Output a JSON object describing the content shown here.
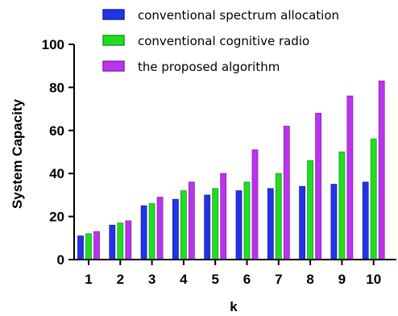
{
  "chart_data": {
    "type": "bar",
    "categories": [
      "1",
      "2",
      "3",
      "4",
      "5",
      "6",
      "7",
      "8",
      "9",
      "10"
    ],
    "series": [
      {
        "name": "conventional spectrum allocation",
        "color": "#2233e8",
        "values": [
          11,
          16,
          25,
          28,
          30,
          32,
          33,
          34,
          35,
          36
        ]
      },
      {
        "name": "conventional cognitive radio",
        "color": "#22dd22",
        "values": [
          12,
          17,
          26,
          32,
          33,
          36,
          40,
          46,
          50,
          56
        ]
      },
      {
        "name": "the proposed algorithm",
        "color": "#bb33ee",
        "values": [
          13,
          18,
          29,
          36,
          40,
          51,
          62,
          68,
          76,
          83
        ]
      }
    ],
    "xlabel": "k",
    "ylabel": "System Capacity",
    "ylim": [
      0,
      100
    ],
    "yticks": [
      0,
      20,
      40,
      60,
      80,
      100
    ],
    "legend_position": "top",
    "grid": false
  }
}
